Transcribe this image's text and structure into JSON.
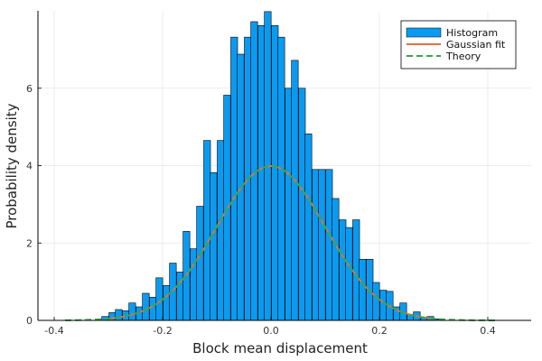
{
  "chart_data": {
    "type": "bar",
    "title": "",
    "xlabel": "Block mean displacement",
    "ylabel": "Probability density",
    "xlim": [
      -0.43,
      0.48
    ],
    "ylim": [
      0,
      8.0
    ],
    "xticks": [
      -0.4,
      -0.2,
      0.0,
      0.2,
      0.4
    ],
    "xtick_labels": [
      "-0.4",
      "-0.2",
      "0.0",
      "0.2",
      "0.4"
    ],
    "yticks": [
      0,
      2,
      4,
      6
    ],
    "ytick_labels": [
      "0",
      "2",
      "4",
      "6"
    ],
    "grid": true,
    "legend_position": "top-right",
    "colors": {
      "histogram": "#0A9BF0",
      "gaussian": "#E26F46",
      "theory": "#3DA44D"
    },
    "histogram": {
      "name": "Histogram",
      "bin_width": 0.0125,
      "bin_centers": [
        -0.306,
        -0.281,
        -0.256,
        -0.231,
        -0.206,
        -0.181,
        -0.156,
        -0.131,
        -0.106,
        -0.081,
        -0.056,
        -0.031,
        -0.006,
        0.019,
        0.044,
        0.069,
        0.094,
        0.119,
        0.144,
        0.169,
        0.194,
        0.219,
        0.244,
        0.269,
        0.294
      ],
      "left_values": [
        0.1,
        0.28,
        0.45,
        0.7,
        1.1,
        1.48,
        2.3,
        2.95,
        3.82,
        5.82,
        6.88,
        7.72,
        7.98,
        7.32,
        6.72,
        4.82,
        3.9,
        3.15,
        2.4,
        1.58,
        0.98,
        0.75,
        0.45,
        0.22,
        0.1
      ],
      "right_values": [
        0.2,
        0.25,
        0.35,
        0.6,
        0.9,
        1.25,
        1.85,
        4.65,
        4.65,
        7.32,
        7.32,
        7.62,
        7.62,
        6.0,
        6.0,
        3.9,
        3.9,
        2.6,
        2.6,
        1.58,
        0.78,
        0.35,
        0.15,
        0.08,
        0.04
      ]
    },
    "gaussian_fit": {
      "name": "Gaussian fit",
      "mean": 0.0,
      "sigma": 0.1,
      "x_range": [
        -0.3,
        0.3
      ]
    },
    "theory": {
      "name": "Theory",
      "mean": 0.0,
      "sigma": 0.1,
      "x_range": [
        -0.38,
        0.42
      ]
    },
    "legend": [
      "Histogram",
      "Gaussian fit",
      "Theory"
    ]
  }
}
